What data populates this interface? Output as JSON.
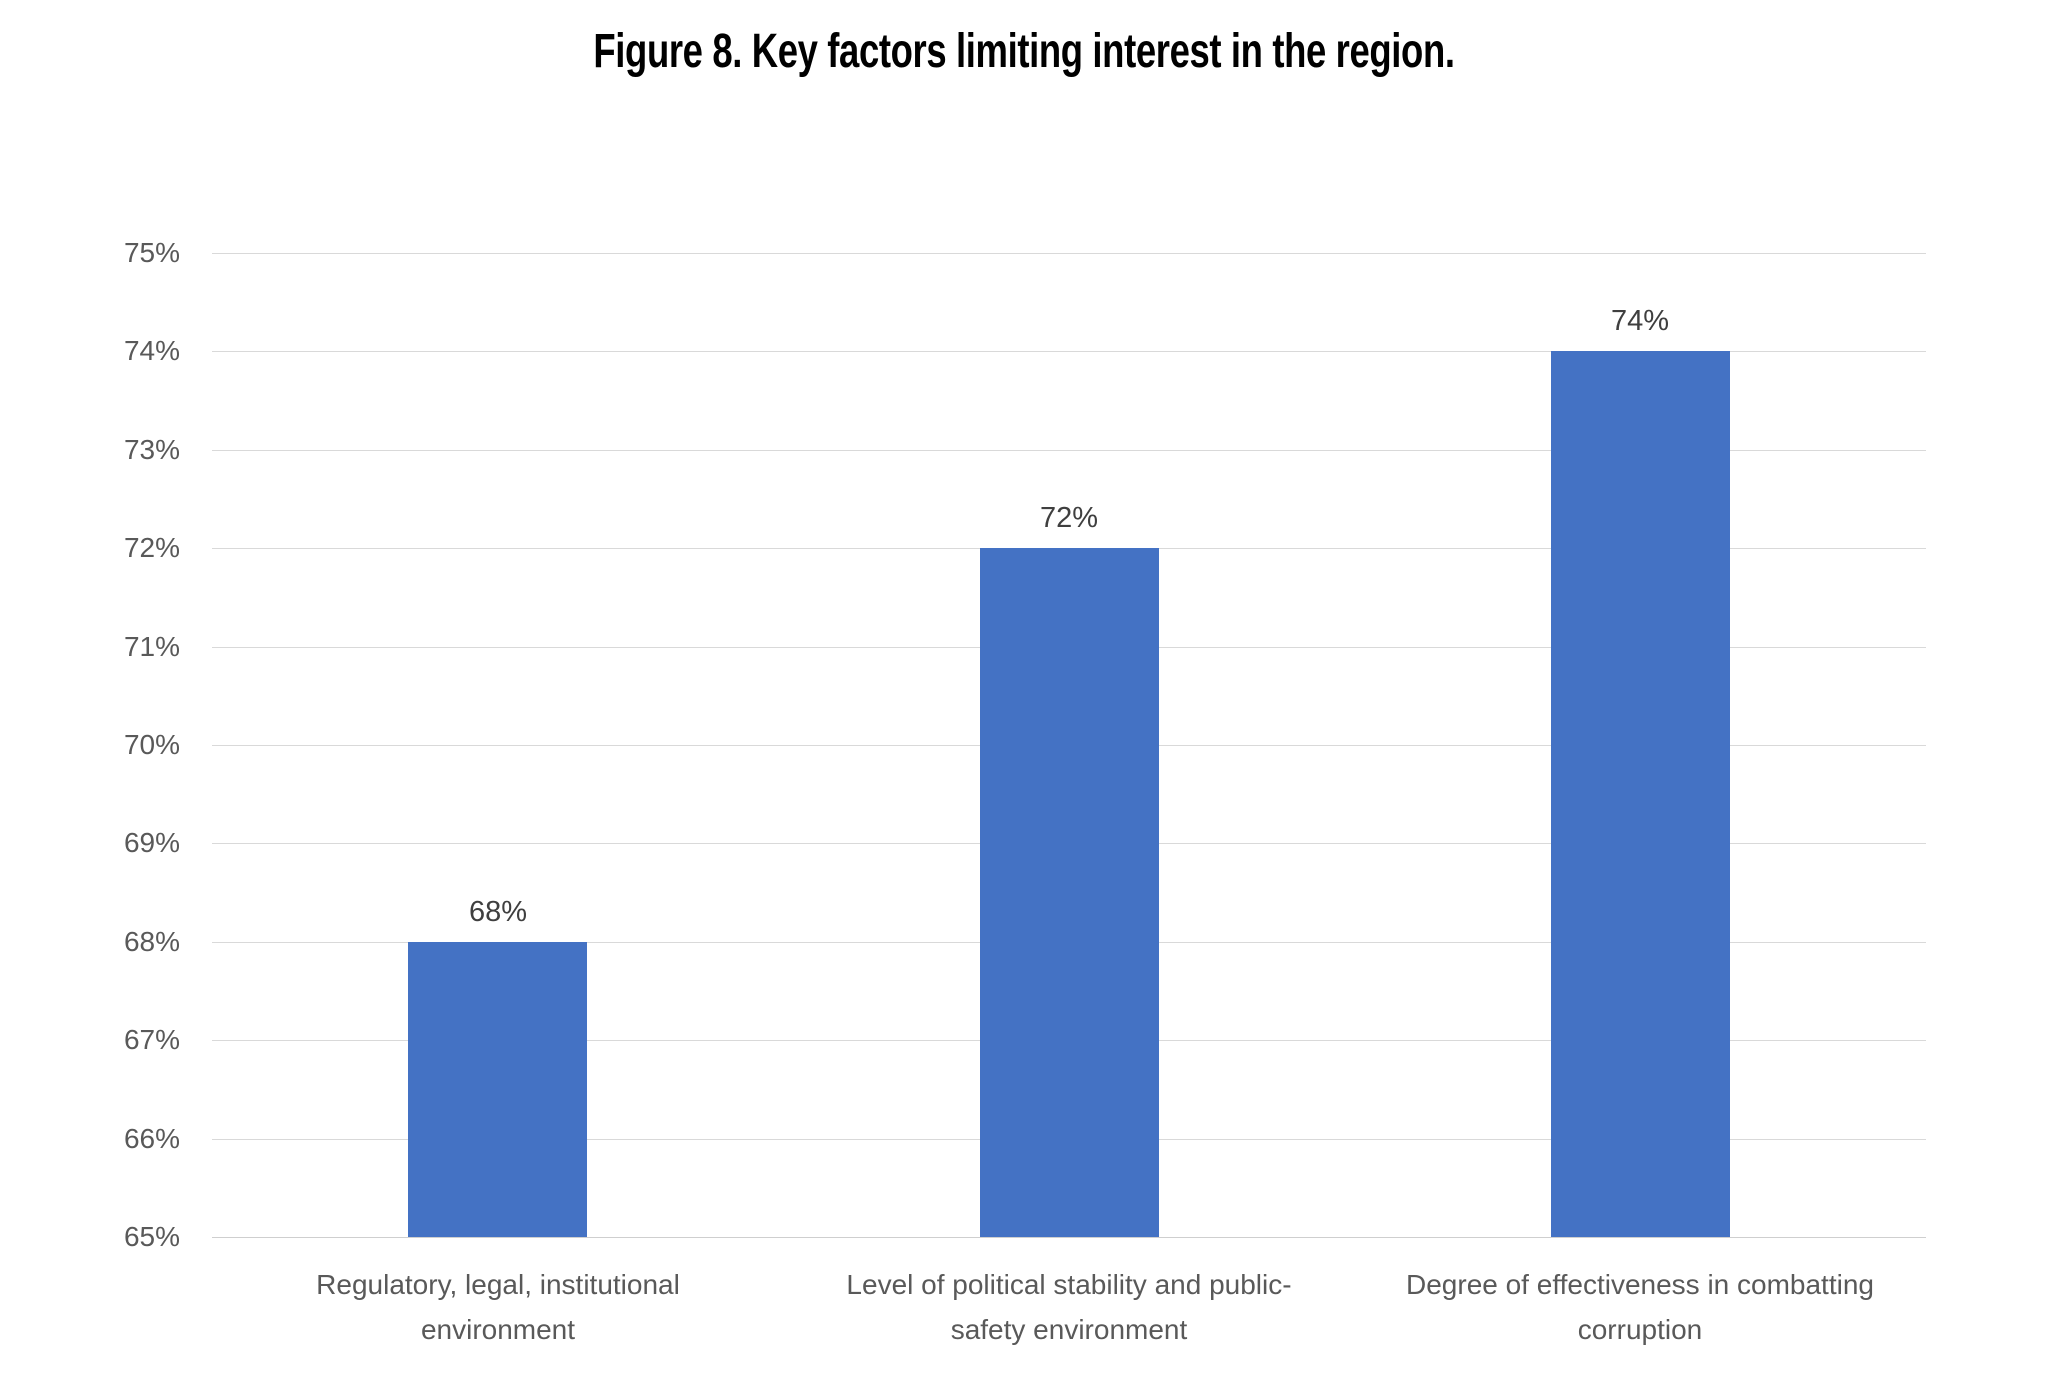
{
  "header": {
    "title": "Figure 8. Key factors limiting interest in the region."
  },
  "chart_data": {
    "type": "bar",
    "title": "Figure 8. Key factors limiting interest in the region.",
    "categories": [
      "Regulatory, legal, institutional environment",
      "Level of political stability and public-safety environment",
      "Degree of effectiveness in combatting corruption"
    ],
    "category_display_lines": [
      [
        "Regulatory, legal, institutional",
        "environment"
      ],
      [
        "Level of political stability and public-",
        "safety environment"
      ],
      [
        "Degree of effectiveness in combatting",
        "corruption"
      ]
    ],
    "values": [
      68,
      72,
      74
    ],
    "data_labels": [
      "68%",
      "72%",
      "74%"
    ],
    "y_tick_labels": [
      "65%",
      "66%",
      "67%",
      "68%",
      "69%",
      "70%",
      "71%",
      "72%",
      "73%",
      "74%",
      "75%"
    ],
    "ylim": [
      65,
      75
    ],
    "y_tick_interval": 1,
    "xlabel": "",
    "ylabel": "",
    "grid": true,
    "legend_position": "none",
    "colors": {
      "bar": "#4472C4",
      "gridline": "#D9D9D9",
      "axis_baseline": "#CFCFCF",
      "tick_label": "#595959",
      "data_label": "#3F3F3F",
      "category_label": "#595959",
      "title": "#000000",
      "background": "#FFFFFF"
    }
  }
}
